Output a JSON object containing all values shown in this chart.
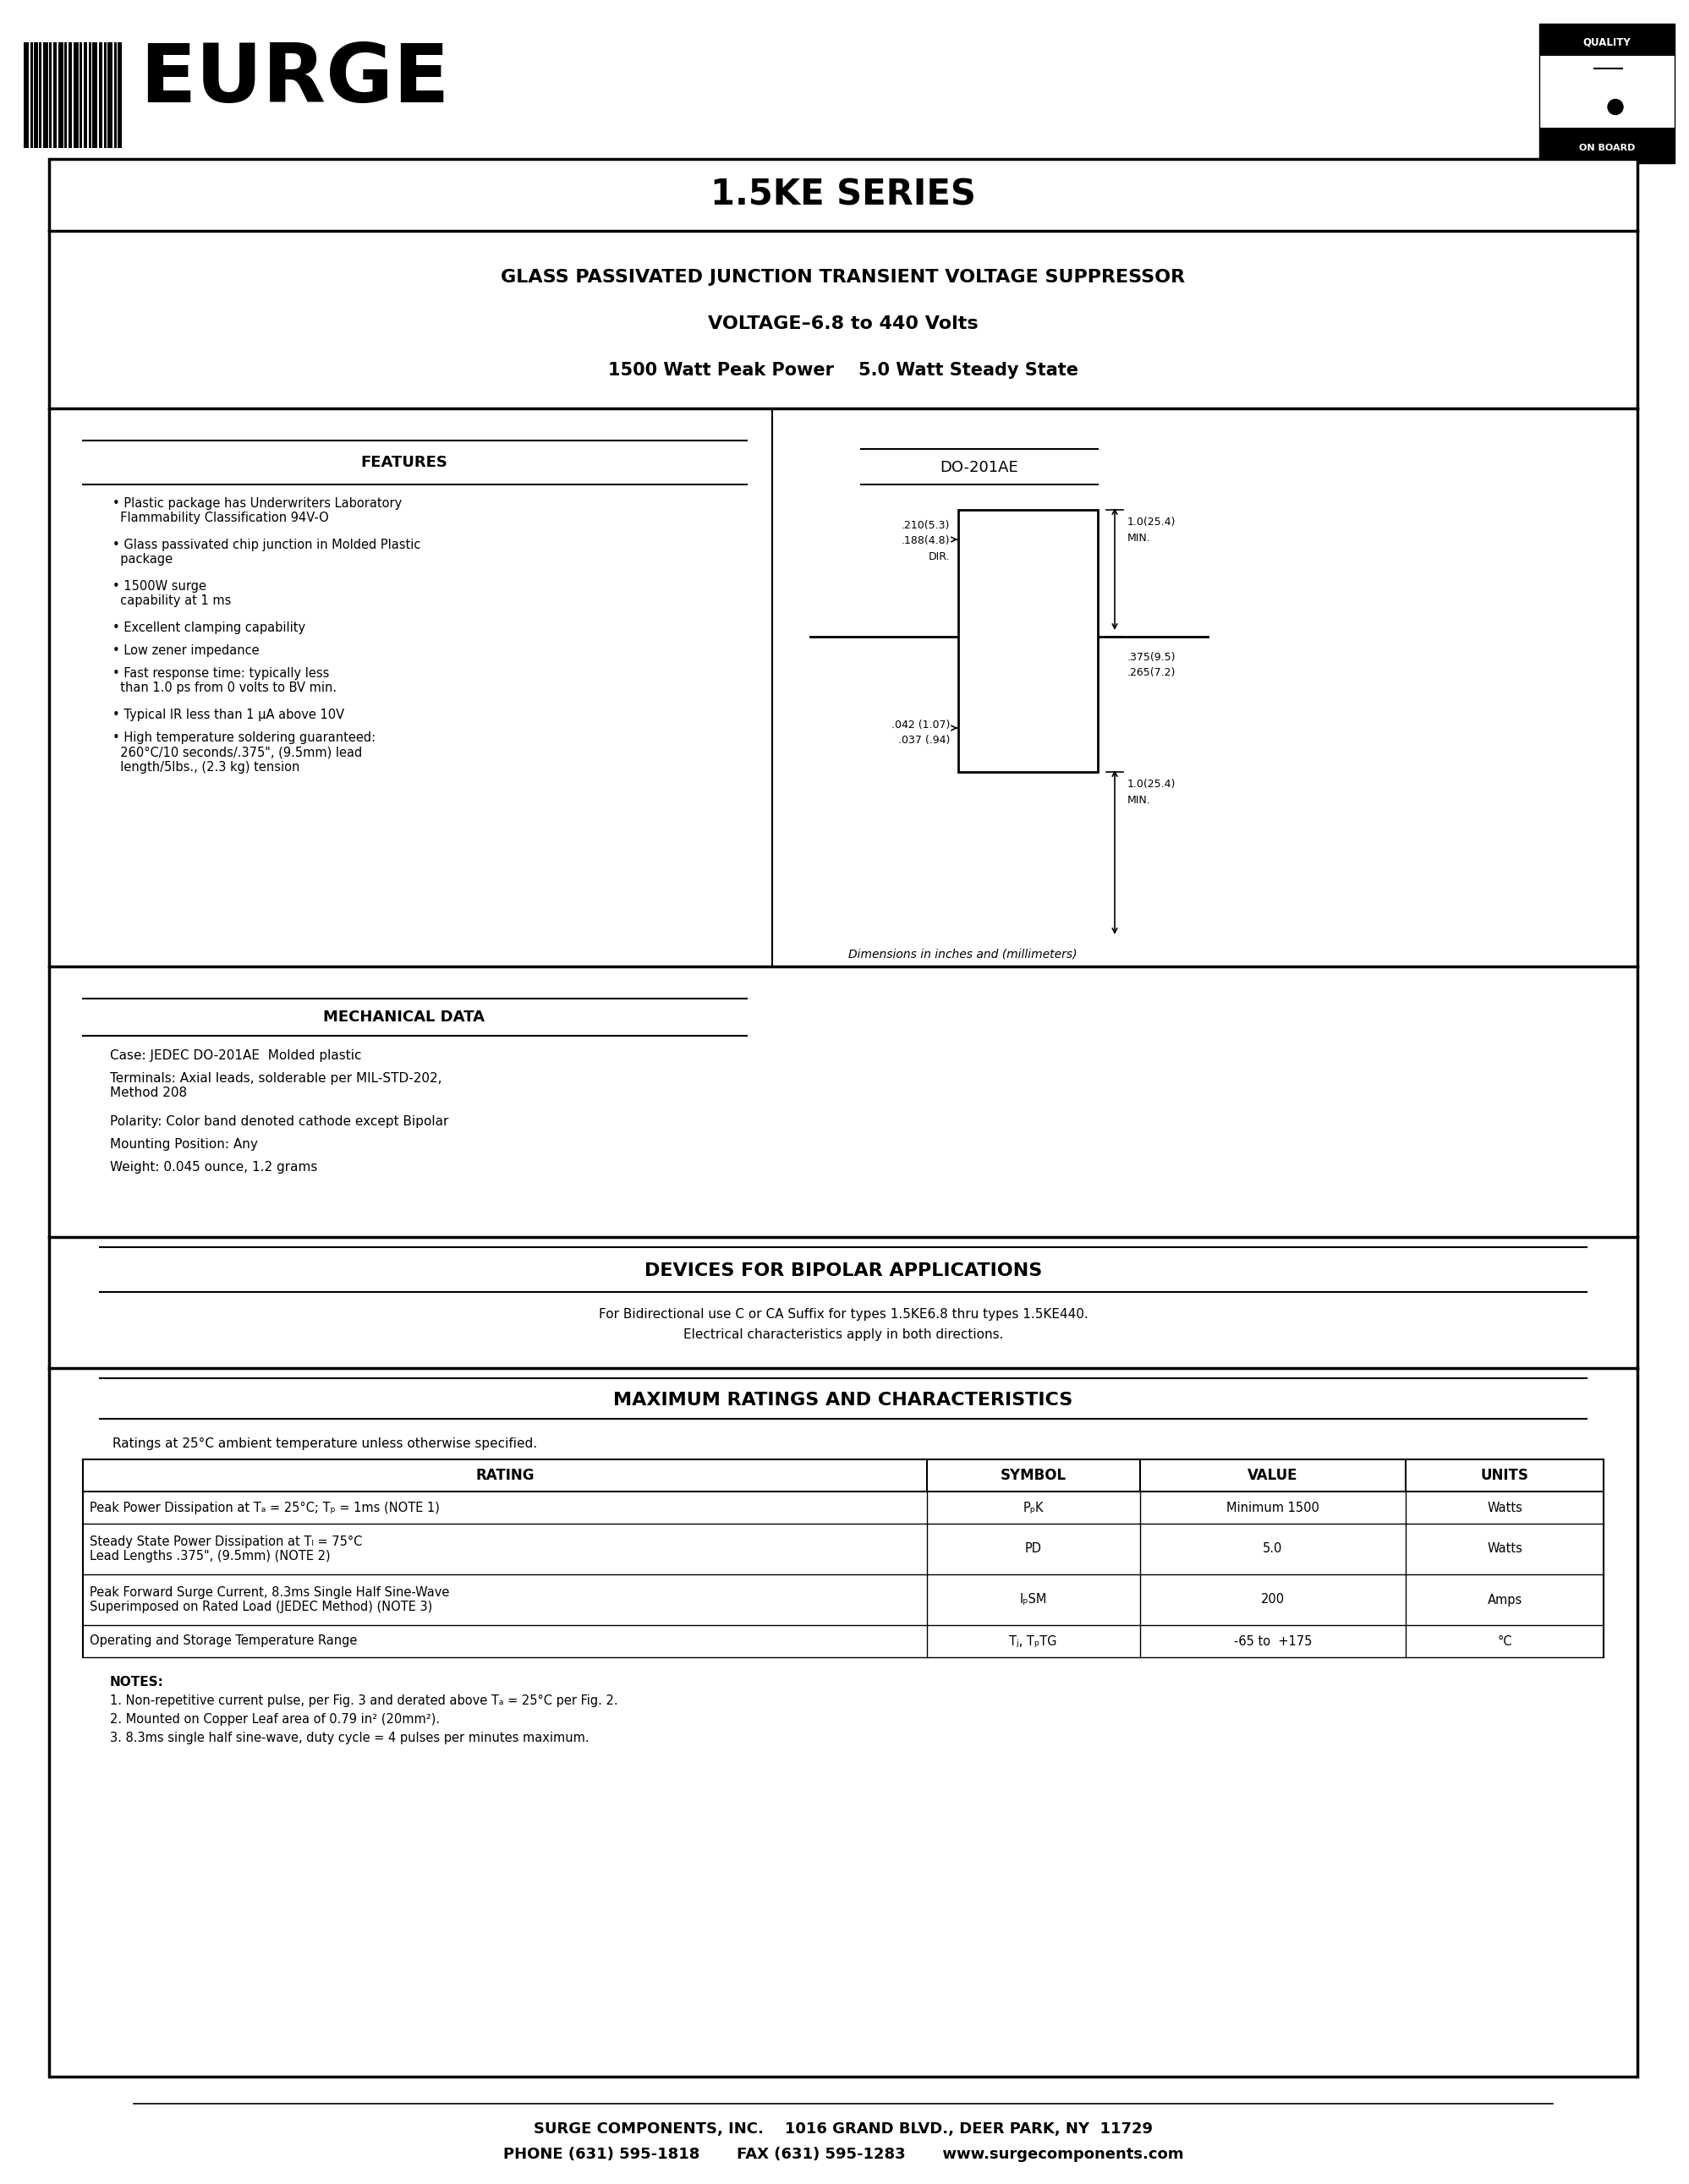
{
  "bg_color": "#ffffff",
  "title_series": "1.5KE SERIES",
  "subtitle1": "GLASS PASSIVATED JUNCTION TRANSIENT VOLTAGE SUPPRESSOR",
  "subtitle2": "VOLTAGE–6.8 to 440 Volts",
  "subtitle3": "1500 Watt Peak Power    5.0 Watt Steady State",
  "features_title": "FEATURES",
  "mech_title": "MECHANICAL DATA",
  "package_label": "DO-201AE",
  "dim_note": "Dimensions in inches and (millimeters)",
  "bipolar_title": "DEVICES FOR BIPOLAR APPLICATIONS",
  "bipolar_line1": "For Bidirectional use C or CA Suffix for types 1.5KE6.8 thru types 1.5KE440.",
  "bipolar_line2": "Electrical characteristics apply in both directions.",
  "ratings_title": "MAXIMUM RATINGS AND CHARACTERISTICS",
  "ratings_note": "Ratings at 25°C ambient temperature unless otherwise specified.",
  "table_headers": [
    "RATING",
    "SYMBOL",
    "VALUE",
    "UNITS"
  ],
  "notes_title": "NOTES:",
  "notes": [
    "1. Non-repetitive current pulse, per Fig. 3 and derated above Tₐ = 25°C per Fig. 2.",
    "2. Mounted on Copper Leaf area of 0.79 in² (20mm²).",
    "3. 8.3ms single half sine-wave, duty cycle = 4 pulses per minutes maximum."
  ],
  "footer1": "SURGE COMPONENTS, INC.    1016 GRAND BLVD., DEER PARK, NY  11729",
  "footer2": "PHONE (631) 595-1818       FAX (631) 595-1283       www.surgecomponents.com"
}
